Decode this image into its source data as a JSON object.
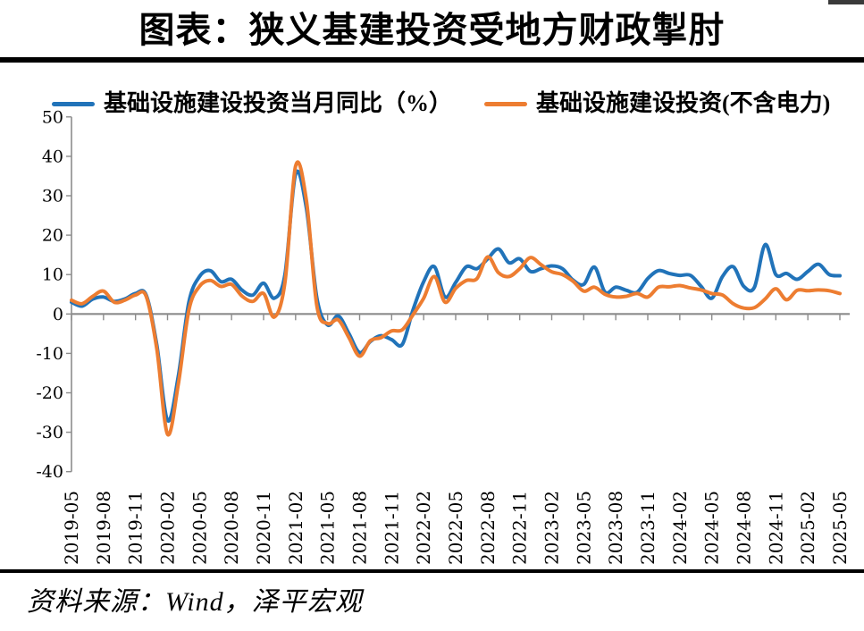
{
  "page": {
    "title": "图表：狭义基建投资受地方财政掣肘",
    "source_note": "资料来源：Wind，泽平宏观"
  },
  "legend": [
    {
      "label": "基础设施建设投资当月同比（%）",
      "color": "#2173B9"
    },
    {
      "label": "基础设施建设投资(不含电力)",
      "color": "#ED7D31"
    }
  ],
  "chart_data": {
    "type": "line",
    "title": "图表：狭义基建投资受地方财政掣肘",
    "x": [
      "2019-05",
      "2019-06",
      "2019-07",
      "2019-08",
      "2019-09",
      "2019-10",
      "2019-11",
      "2019-12",
      "2020-01",
      "2020-02",
      "2020-03",
      "2020-04",
      "2020-05",
      "2020-06",
      "2020-07",
      "2020-08",
      "2020-09",
      "2020-10",
      "2020-11",
      "2020-12",
      "2021-01",
      "2021-02",
      "2021-03",
      "2021-04",
      "2021-05",
      "2021-06",
      "2021-07",
      "2021-08",
      "2021-09",
      "2021-10",
      "2021-11",
      "2021-12",
      "2022-01",
      "2022-02",
      "2022-03",
      "2022-04",
      "2022-05",
      "2022-06",
      "2022-07",
      "2022-08",
      "2022-09",
      "2022-10",
      "2022-11",
      "2022-12",
      "2023-01",
      "2023-02",
      "2023-03",
      "2023-04",
      "2023-05",
      "2023-06",
      "2023-07",
      "2023-08",
      "2023-09",
      "2023-10",
      "2023-11",
      "2023-12",
      "2024-01",
      "2024-02",
      "2024-03",
      "2024-04",
      "2024-05",
      "2024-06",
      "2024-07",
      "2024-08",
      "2024-09",
      "2024-10",
      "2024-11",
      "2024-12",
      "2025-01",
      "2025-02",
      "2025-03",
      "2025-04",
      "2025-05"
    ],
    "series": [
      {
        "name": "基础设施建设投资当月同比（%）",
        "color": "#2173B9",
        "values": [
          3.0,
          2.0,
          3.8,
          4.3,
          3.2,
          3.8,
          5.2,
          4.8,
          -8.0,
          -27.0,
          -16.0,
          3.0,
          9.5,
          11.0,
          8.2,
          8.8,
          6.0,
          4.8,
          7.8,
          4.0,
          10.0,
          35.5,
          27.0,
          4.0,
          -2.8,
          -0.5,
          -5.0,
          -9.8,
          -7.0,
          -5.5,
          -6.5,
          -7.7,
          1.0,
          8.2,
          12.0,
          4.3,
          8.0,
          12.0,
          11.5,
          14.0,
          16.5,
          13.0,
          14.0,
          10.8,
          11.5,
          12.2,
          11.5,
          8.6,
          7.5,
          11.9,
          5.5,
          6.8,
          6.0,
          5.5,
          9.0,
          11.0,
          10.3,
          9.8,
          9.8,
          7.0,
          4.0,
          9.5,
          12.0,
          7.0,
          6.8,
          17.6,
          10.0,
          10.3,
          8.8,
          10.8,
          12.6,
          10.0,
          9.7
        ]
      },
      {
        "name": "基础设施建设投资(不含电力)",
        "color": "#ED7D31",
        "values": [
          3.5,
          2.6,
          4.5,
          5.8,
          3.0,
          3.5,
          4.8,
          4.5,
          -9.0,
          -30.5,
          -18.0,
          1.0,
          7.0,
          8.5,
          7.0,
          7.5,
          4.5,
          3.2,
          5.2,
          -0.8,
          8.0,
          37.5,
          29.0,
          2.0,
          -2.4,
          -1.5,
          -6.0,
          -10.7,
          -6.8,
          -6.0,
          -4.3,
          -4.0,
          -0.2,
          4.0,
          9.5,
          3.0,
          6.5,
          8.5,
          9.0,
          14.5,
          10.5,
          9.5,
          11.5,
          14.3,
          12.5,
          10.7,
          10.0,
          8.3,
          5.8,
          6.8,
          5.0,
          4.3,
          4.5,
          5.2,
          4.3,
          6.8,
          6.9,
          7.2,
          6.6,
          6.1,
          5.2,
          4.8,
          2.6,
          1.5,
          1.6,
          3.8,
          6.4,
          3.6,
          6.0,
          5.9,
          6.1,
          5.9,
          5.2
        ]
      }
    ],
    "ylim": [
      -40,
      50
    ],
    "yticks": [
      50,
      40,
      30,
      20,
      10,
      0,
      -10,
      -20,
      -30,
      -40
    ],
    "xtick_every": 3,
    "grid": false,
    "legend_position": "top",
    "axis_color": "#8C8C8C",
    "smooth": true
  }
}
